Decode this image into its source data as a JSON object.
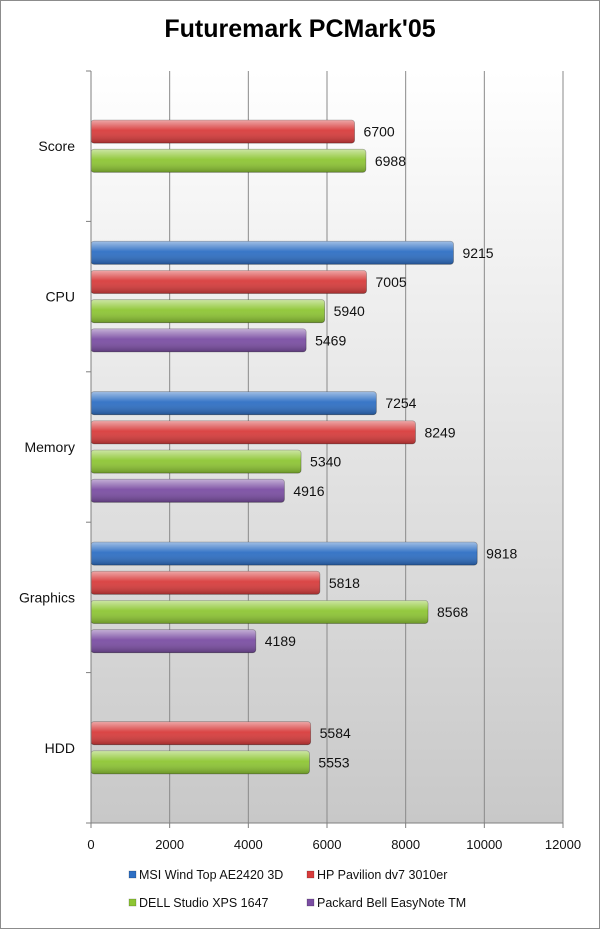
{
  "chart_data": {
    "type": "bar",
    "orientation": "horizontal",
    "title": "Futuremark PCMark'05",
    "categories": [
      "Score",
      "CPU",
      "Memory",
      "Graphics",
      "HDD"
    ],
    "series": [
      {
        "name": "MSI Wind Top AE2420 3D",
        "color": "#2e6fc4",
        "values": [
          null,
          9215,
          7254,
          9818,
          null
        ]
      },
      {
        "name": "HP Pavilion dv7 3010er",
        "color": "#d83c3c",
        "values": [
          6700,
          7005,
          8249,
          5818,
          5584
        ]
      },
      {
        "name": "DELL Studio XPS 1647",
        "color": "#8ec634",
        "values": [
          6988,
          5940,
          5340,
          8568,
          5553
        ]
      },
      {
        "name": "Packard Bell EasyNote TM",
        "color": "#7b4ea3",
        "values": [
          null,
          5469,
          4916,
          4189,
          null
        ]
      }
    ],
    "xlim": [
      0,
      12000
    ],
    "xticks": [
      "0",
      "2000",
      "4000",
      "6000",
      "8000",
      "10000",
      "12000"
    ],
    "grid": true,
    "legend_position": "bottom"
  }
}
